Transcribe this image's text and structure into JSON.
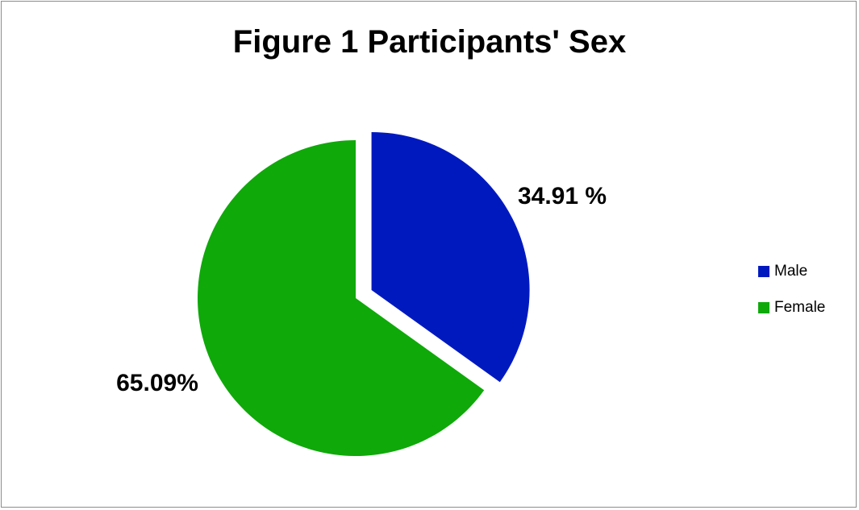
{
  "chart_data": {
    "type": "pie",
    "title": "Figure 1 Participants' Sex",
    "slices": [
      {
        "label": "Male",
        "value": 34.91,
        "data_label": "34.91 %",
        "color": "#0019bf",
        "exploded": true
      },
      {
        "label": "Female",
        "value": 65.09,
        "data_label": "65.09%",
        "color": "#0fa90a",
        "exploded": false
      }
    ],
    "legend_position": "right"
  }
}
